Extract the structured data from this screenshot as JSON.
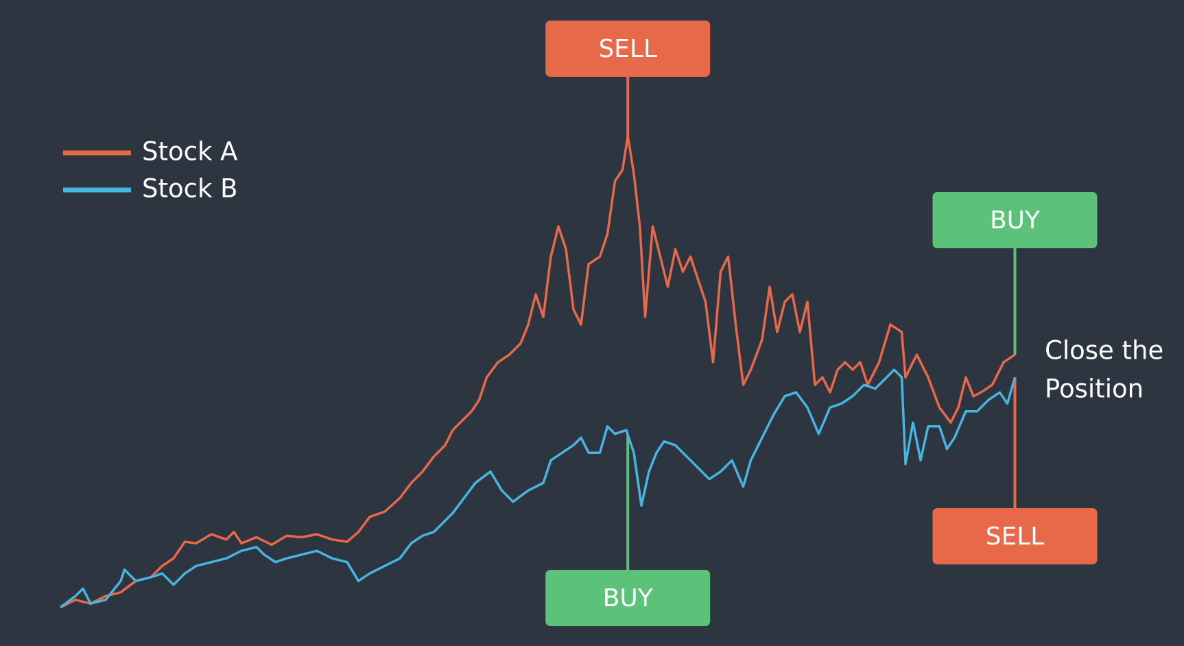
{
  "chart_data": {
    "type": "line",
    "xlim": [
      0,
      1265
    ],
    "ylim": [
      0,
      650
    ],
    "series": [
      {
        "name": "Stock A",
        "color": "#e8694a",
        "x": [
          0,
          20,
          40,
          60,
          80,
          100,
          120,
          135,
          150,
          165,
          180,
          200,
          220,
          230,
          240,
          260,
          280,
          300,
          320,
          340,
          360,
          380,
          395,
          410,
          430,
          450,
          465,
          480,
          495,
          510,
          520,
          535,
          545,
          555,
          565,
          580,
          595,
          610,
          620,
          630,
          640,
          650,
          660,
          670,
          680,
          690,
          700,
          715,
          725,
          735,
          745,
          752,
          760,
          768,
          775,
          785,
          795,
          805,
          815,
          825,
          835,
          845,
          855,
          865,
          875,
          885,
          895,
          905,
          915,
          930,
          940,
          950,
          960,
          970,
          980,
          990,
          1000,
          1010,
          1020,
          1030,
          1040,
          1050,
          1060,
          1070,
          1085,
          1100,
          1115,
          1120,
          1135,
          1150,
          1165,
          1180,
          1190,
          1200,
          1210,
          1220,
          1235,
          1250,
          1265
        ],
        "values": [
          13,
          23,
          18,
          28,
          33,
          48,
          53,
          68,
          78,
          100,
          98,
          110,
          103,
          113,
          98,
          106,
          96,
          108,
          106,
          110,
          103,
          100,
          113,
          133,
          140,
          158,
          178,
          193,
          213,
          228,
          248,
          263,
          273,
          288,
          318,
          338,
          348,
          363,
          388,
          428,
          398,
          478,
          518,
          488,
          408,
          388,
          468,
          478,
          508,
          578,
          593,
          638,
          588,
          518,
          398,
          518,
          478,
          438,
          488,
          458,
          478,
          448,
          418,
          338,
          458,
          478,
          388,
          308,
          328,
          368,
          438,
          378,
          418,
          428,
          378,
          418,
          308,
          318,
          298,
          328,
          338,
          328,
          338,
          308,
          338,
          388,
          378,
          318,
          348,
          318,
          278,
          258,
          278,
          318,
          293,
          298,
          308,
          338,
          348
        ]
      },
      {
        "name": "Stock B",
        "color": "#48b4e0",
        "x": [
          0,
          20,
          30,
          40,
          60,
          80,
          85,
          100,
          120,
          135,
          150,
          165,
          180,
          200,
          220,
          240,
          260,
          270,
          285,
          300,
          320,
          340,
          360,
          380,
          395,
          410,
          430,
          450,
          465,
          480,
          495,
          510,
          520,
          535,
          550,
          570,
          585,
          600,
          620,
          640,
          650,
          665,
          680,
          690,
          700,
          715,
          725,
          735,
          750,
          760,
          770,
          780,
          790,
          800,
          815,
          825,
          840,
          860,
          875,
          890,
          905,
          915,
          930,
          945,
          960,
          975,
          990,
          1005,
          1020,
          1035,
          1050,
          1065,
          1080,
          1095,
          1105,
          1115,
          1120,
          1130,
          1140,
          1150,
          1165,
          1175,
          1185,
          1200,
          1215,
          1230,
          1245,
          1255,
          1265
        ],
        "values": [
          13,
          28,
          38,
          18,
          23,
          48,
          63,
          48,
          53,
          58,
          43,
          58,
          68,
          73,
          78,
          88,
          93,
          83,
          73,
          78,
          83,
          88,
          78,
          73,
          48,
          58,
          68,
          78,
          98,
          108,
          113,
          128,
          138,
          158,
          178,
          193,
          168,
          153,
          168,
          178,
          208,
          218,
          228,
          238,
          218,
          218,
          253,
          243,
          248,
          218,
          148,
          193,
          218,
          233,
          228,
          218,
          203,
          183,
          193,
          208,
          173,
          208,
          238,
          268,
          293,
          298,
          278,
          243,
          278,
          283,
          293,
          308,
          303,
          318,
          328,
          318,
          203,
          258,
          208,
          253,
          253,
          223,
          238,
          273,
          273,
          288,
          298,
          283,
          318
        ]
      }
    ],
    "legend": "upper left",
    "annotations": [
      {
        "text": "SELL",
        "x": 752,
        "series": "Stock A",
        "color": "#e8694a"
      },
      {
        "text": "BUY",
        "x": 752,
        "series": "Stock B",
        "color": "#5cc27a"
      },
      {
        "text": "BUY",
        "x": 1265,
        "series": "Stock A",
        "color": "#5cc27a"
      },
      {
        "text": "SELL",
        "x": 1265,
        "series": "Stock B",
        "color": "#e8694a"
      }
    ],
    "note": [
      "Close the",
      "Position"
    ]
  }
}
